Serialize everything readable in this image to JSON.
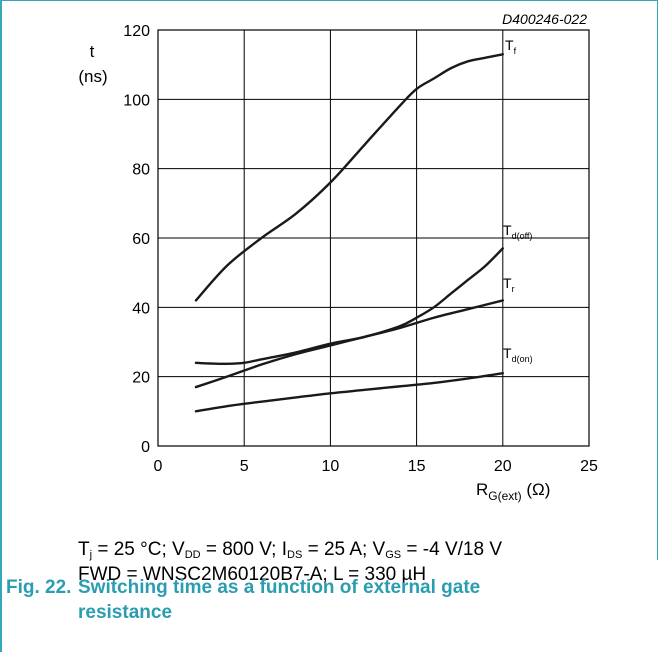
{
  "chart_data": {
    "type": "line",
    "doc_id": "D400246-022",
    "ylabel_symbol": "t",
    "ylabel_unit": "(ns)",
    "xlabel_main": "R",
    "xlabel_sub": "G(ext)",
    "xlabel_unit": "(Ω)",
    "xlim": [
      0,
      25
    ],
    "ylim": [
      0,
      120
    ],
    "x_ticks": [
      0,
      5,
      10,
      15,
      20,
      25
    ],
    "y_ticks": [
      0,
      20,
      40,
      60,
      80,
      100,
      120
    ],
    "grid": true,
    "series": [
      {
        "name": "T",
        "sub": "f",
        "x": [
          2.2,
          4,
          6,
          8,
          10,
          12,
          14,
          15,
          16,
          17,
          18,
          19,
          20
        ],
        "y": [
          42,
          52,
          60,
          67,
          76,
          87,
          98,
          103,
          106,
          109,
          111,
          112,
          113
        ]
      },
      {
        "name": "T",
        "sub": "d(off)",
        "x": [
          2.2,
          3,
          4,
          5,
          6,
          8,
          10,
          12,
          14,
          15,
          16,
          17,
          18,
          19,
          20
        ],
        "y": [
          24,
          23.8,
          23.7,
          24,
          25,
          27,
          29.5,
          31.5,
          34.5,
          37,
          40,
          44,
          48,
          52,
          57
        ]
      },
      {
        "name": "T",
        "sub": "r",
        "x": [
          2.2,
          4,
          6,
          8,
          10,
          12,
          14,
          16,
          18,
          20
        ],
        "y": [
          17,
          20,
          23.5,
          26.5,
          29,
          31.5,
          34,
          37,
          39.5,
          42
        ]
      },
      {
        "name": "T",
        "sub": "d(on)",
        "x": [
          2.2,
          4,
          6,
          8,
          10,
          12,
          14,
          16,
          18,
          20
        ],
        "y": [
          10,
          11.5,
          12.8,
          14,
          15.2,
          16.2,
          17.2,
          18.2,
          19.5,
          21
        ]
      }
    ]
  },
  "conditions": {
    "line1": [
      {
        "t": "T"
      },
      {
        "s": "j"
      },
      {
        "t": " = 25 °C; V"
      },
      {
        "s": "DD"
      },
      {
        "t": " = 800 V; I"
      },
      {
        "s": "DS"
      },
      {
        "t": " = 25 A; V"
      },
      {
        "s": "GS"
      },
      {
        "t": " = -4 V/18 V"
      }
    ],
    "line2": "FWD = WNSC2M60120B7-A; L = 330 µH"
  },
  "caption": {
    "number": "Fig. 22.",
    "line1": "Switching time as a function of external gate",
    "line2": "resistance"
  },
  "colors": {
    "frame": "#34a7b9",
    "caption": "#2b9db1",
    "curve": "#1a1a1a",
    "grid": "#000000"
  }
}
